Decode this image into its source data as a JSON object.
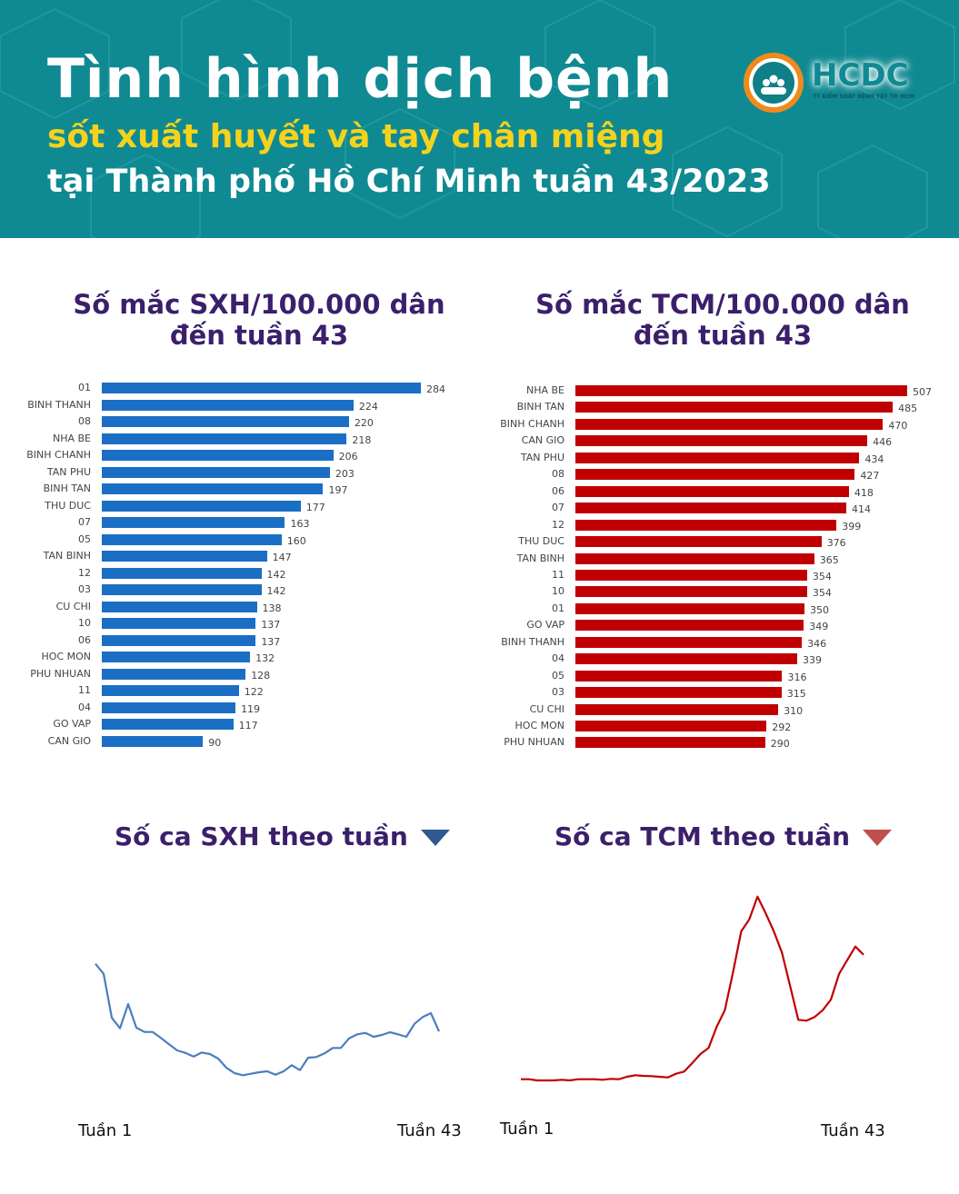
{
  "header": {
    "title": "Tình hình dịch bệnh",
    "subtitle": "sốt xuất huyết và tay chân miệng",
    "subtitle2": "tại Thành phố Hồ Chí Minh tuần 43/2023",
    "logo": {
      "name": "HCDC",
      "tagline": "TT KIỂM SOÁT BỆNH TẬT TP. HCM"
    },
    "bg_color": "#0f8a93",
    "accent": "#f5d21c"
  },
  "chart_data": [
    {
      "type": "bar",
      "orientation": "horizontal",
      "title": "Số mắc SXH/100.000 dân\nđến tuần 43",
      "title_line1": "Số mắc SXH/100.000 dân",
      "title_line2": "đến tuần 43",
      "color": "#1a6fc4",
      "categories": [
        "01",
        "BINH THANH",
        "08",
        "NHA BE",
        "BINH CHANH",
        "TAN PHU",
        "BINH TAN",
        "THU DUC",
        "07",
        "05",
        "TAN BINH",
        "12",
        "03",
        "CU CHI",
        "10",
        "06",
        "HOC MON",
        "PHU NHUAN",
        "11",
        "04",
        "GO VAP",
        "CAN GIO"
      ],
      "values": [
        284,
        224,
        220,
        218,
        206,
        203,
        197,
        177,
        163,
        160,
        147,
        142,
        142,
        138,
        137,
        137,
        132,
        128,
        122,
        119,
        117,
        90
      ]
    },
    {
      "type": "bar",
      "orientation": "horizontal",
      "title": "Số mắc TCM/100.000 dân\nđến tuần 43",
      "title_line1": "Số mắc TCM/100.000 dân",
      "title_line2": "đến tuần 43",
      "color": "#c00000",
      "categories": [
        "NHA BE",
        "BINH TAN",
        "BINH CHANH",
        "CAN GIO",
        "TAN PHU",
        "08",
        "06",
        "07",
        "12",
        "THU DUC",
        "TAN BINH",
        "11",
        "10",
        "01",
        "GO VAP",
        "BINH THANH",
        "04",
        "05",
        "03",
        "CU CHI",
        "HOC MON",
        "PHU NHUAN"
      ],
      "values": [
        507,
        485,
        470,
        446,
        434,
        427,
        418,
        414,
        399,
        376,
        365,
        354,
        354,
        350,
        349,
        346,
        339,
        316,
        315,
        310,
        292,
        290
      ]
    },
    {
      "type": "line",
      "title": "Số ca SXH theo tuần",
      "color": "#4a7ebf",
      "trend_icon": "triangle-down",
      "trend_color": "#2e5a8f",
      "x_start_label": "Tuần 1",
      "x_end_label": "Tuần 43",
      "y_axis": "none (relative, unlabeled)",
      "values": [
        388,
        355,
        210,
        175,
        255,
        177,
        163,
        163,
        143,
        122,
        102,
        94,
        82,
        95,
        90,
        75,
        45,
        27,
        20,
        25,
        30,
        33,
        22,
        33,
        53,
        37,
        78,
        80,
        92,
        110,
        110,
        142,
        155,
        160,
        147,
        153,
        162,
        155,
        147,
        190,
        212,
        225,
        165
      ]
    },
    {
      "type": "line",
      "title": "Số ca TCM theo tuần",
      "color": "#c00000",
      "trend_icon": "triangle-down",
      "trend_color": "#c0504d",
      "x_start_label": "Tuần 1",
      "x_end_label": "Tuần 43",
      "y_axis": "none (relative, unlabeled)",
      "values": [
        27,
        27,
        23,
        23,
        23,
        25,
        23,
        27,
        27,
        27,
        25,
        28,
        27,
        35,
        40,
        38,
        37,
        35,
        33,
        45,
        52,
        80,
        110,
        130,
        200,
        255,
        380,
        515,
        555,
        630,
        575,
        515,
        445,
        335,
        223,
        220,
        232,
        255,
        290,
        375,
        420,
        465,
        438
      ]
    }
  ]
}
